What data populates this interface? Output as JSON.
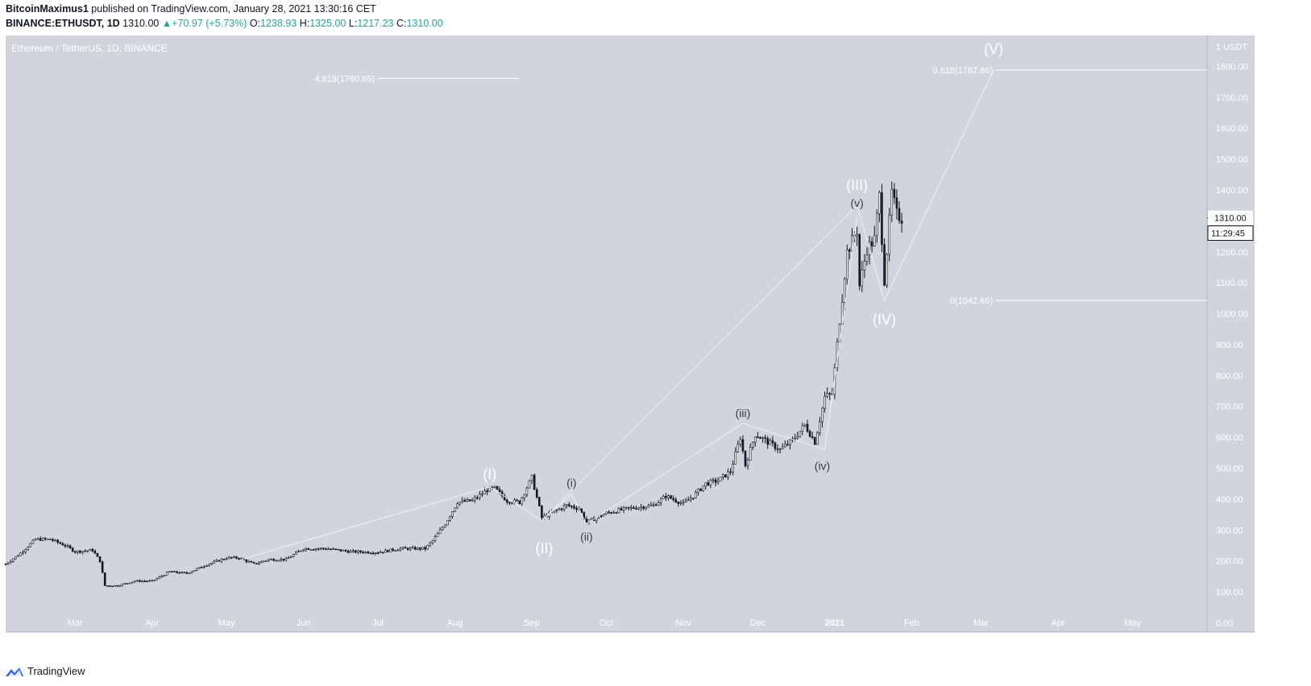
{
  "header": {
    "author": "BitcoinMaximus1",
    "published_text": "published on TradingView.com, January 28, 2021 13:30:16 CET",
    "symbol": "BINANCE:ETHUSDT, 1D",
    "last": "1310.00",
    "arrow": "▲",
    "change": "+70.97 (+5.73%)",
    "o_label": "O:",
    "o_value": "1238.93",
    "h_label": "H:",
    "h_value": "1325.00",
    "l_label": "L:",
    "l_value": "1217.23",
    "c_label": "C:",
    "c_value": "1310.00"
  },
  "footer": {
    "brand": "TradingView"
  },
  "colors": {
    "background": "#d1d4dc",
    "candle": "#131722",
    "wave_line": "#f0f3fa",
    "label": "#ffffff",
    "accent": "#26a69a"
  },
  "chart_data": {
    "type": "candlestick",
    "title": "Ethereum / TetherUS, 1D, BINANCE",
    "ylabel": "USDT",
    "y_unit_label": "1 USDT",
    "ylim": [
      -30,
      1900
    ],
    "yticks": [
      0,
      100,
      200,
      300,
      400,
      500,
      600,
      700,
      800,
      900,
      1000,
      1100,
      1200,
      1300,
      1400,
      1500,
      1600,
      1700,
      1800
    ],
    "ytick_labels": [
      "0.00",
      "100.00",
      "200.00",
      "300.00",
      "400.00",
      "500.00",
      "600.00",
      "700.00",
      "800.00",
      "900.00",
      "1000.00",
      "1100.00",
      "1200.00",
      "1300.00",
      "1400.00",
      "1500.00",
      "1600.00",
      "1700.00",
      "1800.00"
    ],
    "xlim": [
      "2020-02-02",
      "2021-05-31"
    ],
    "xticks": [
      {
        "date": "2020-03-01",
        "label": "Mar"
      },
      {
        "date": "2020-04-01",
        "label": "Apr"
      },
      {
        "date": "2020-05-01",
        "label": "May"
      },
      {
        "date": "2020-06-01",
        "label": "Jun"
      },
      {
        "date": "2020-07-01",
        "label": "Jul"
      },
      {
        "date": "2020-08-01",
        "label": "Aug"
      },
      {
        "date": "2020-09-01",
        "label": "Sep"
      },
      {
        "date": "2020-10-01",
        "label": "Oct"
      },
      {
        "date": "2020-11-01",
        "label": "Nov"
      },
      {
        "date": "2020-12-01",
        "label": "Dec"
      },
      {
        "date": "2021-01-01",
        "label": "2021"
      },
      {
        "date": "2021-02-01",
        "label": "Feb"
      },
      {
        "date": "2021-03-01",
        "label": "Mar"
      },
      {
        "date": "2021-04-01",
        "label": "Apr"
      },
      {
        "date": "2021-05-01",
        "label": "May"
      }
    ],
    "price_points": [
      [
        "2020-02-02",
        190
      ],
      [
        "2020-02-08",
        225
      ],
      [
        "2020-02-14",
        270
      ],
      [
        "2020-02-20",
        270
      ],
      [
        "2020-02-26",
        250
      ],
      [
        "2020-03-01",
        230
      ],
      [
        "2020-03-08",
        235
      ],
      [
        "2020-03-11",
        200
      ],
      [
        "2020-03-13",
        120
      ],
      [
        "2020-03-18",
        120
      ],
      [
        "2020-03-25",
        135
      ],
      [
        "2020-04-01",
        135
      ],
      [
        "2020-04-08",
        165
      ],
      [
        "2020-04-15",
        160
      ],
      [
        "2020-04-22",
        185
      ],
      [
        "2020-05-01",
        210
      ],
      [
        "2020-05-06",
        210
      ],
      [
        "2020-05-12",
        190
      ],
      [
        "2020-05-18",
        205
      ],
      [
        "2020-05-25",
        205
      ],
      [
        "2020-06-01",
        240
      ],
      [
        "2020-06-10",
        240
      ],
      [
        "2020-06-20",
        230
      ],
      [
        "2020-07-01",
        228
      ],
      [
        "2020-07-10",
        240
      ],
      [
        "2020-07-20",
        240
      ],
      [
        "2020-07-23",
        265
      ],
      [
        "2020-07-28",
        320
      ],
      [
        "2020-08-02",
        390
      ],
      [
        "2020-08-08",
        395
      ],
      [
        "2020-08-14",
        430
      ],
      [
        "2020-08-17",
        435
      ],
      [
        "2020-08-22",
        395
      ],
      [
        "2020-08-27",
        390
      ],
      [
        "2020-09-01",
        470
      ],
      [
        "2020-09-05",
        340
      ],
      [
        "2020-09-10",
        360
      ],
      [
        "2020-09-15",
        380
      ],
      [
        "2020-09-20",
        370
      ],
      [
        "2020-09-23",
        325
      ],
      [
        "2020-10-01",
        355
      ],
      [
        "2020-10-10",
        370
      ],
      [
        "2020-10-20",
        380
      ],
      [
        "2020-10-25",
        410
      ],
      [
        "2020-11-01",
        385
      ],
      [
        "2020-11-05",
        410
      ],
      [
        "2020-11-10",
        450
      ],
      [
        "2020-11-15",
        460
      ],
      [
        "2020-11-20",
        490
      ],
      [
        "2020-11-24",
        600
      ],
      [
        "2020-11-26",
        510
      ],
      [
        "2020-11-30",
        610
      ],
      [
        "2020-12-05",
        585
      ],
      [
        "2020-12-10",
        560
      ],
      [
        "2020-12-15",
        590
      ],
      [
        "2020-12-20",
        640
      ],
      [
        "2020-12-24",
        585
      ],
      [
        "2020-12-28",
        730
      ],
      [
        "2020-12-31",
        740
      ],
      [
        "2021-01-03",
        980
      ],
      [
        "2021-01-06",
        1200
      ],
      [
        "2021-01-10",
        1270
      ],
      [
        "2021-01-11",
        1090
      ],
      [
        "2021-01-14",
        1210
      ],
      [
        "2021-01-17",
        1240
      ],
      [
        "2021-01-19",
        1380
      ],
      [
        "2021-01-21",
        1110
      ],
      [
        "2021-01-24",
        1390
      ],
      [
        "2021-01-26",
        1320
      ],
      [
        "2021-01-28",
        1310
      ]
    ],
    "waves": [
      {
        "points": [
          [
            "2020-05-07",
            205
          ],
          [
            "2020-08-15",
            440
          ],
          [
            "2020-09-05",
            330
          ],
          [
            "2021-01-10",
            1350
          ],
          [
            "2021-01-21",
            1042.66
          ],
          [
            "2021-03-06",
            1787.86
          ]
        ]
      },
      {
        "points": [
          [
            "2020-09-05",
            330
          ],
          [
            "2020-09-17",
            415
          ],
          [
            "2020-09-23",
            320
          ],
          [
            "2020-11-25",
            645
          ],
          [
            "2020-12-28",
            560
          ],
          [
            "2021-01-10",
            1310
          ]
        ]
      }
    ],
    "wave_labels": [
      {
        "text": "(I)",
        "date": "2020-08-15",
        "value": 465,
        "size": "big"
      },
      {
        "text": "(II)",
        "date": "2020-09-06",
        "value": 225,
        "size": "big"
      },
      {
        "text": "(III)",
        "date": "2021-01-10",
        "value": 1400,
        "size": "big"
      },
      {
        "text": "(IV)",
        "date": "2021-01-21",
        "value": 965,
        "size": "big"
      },
      {
        "text": "(V)",
        "date": "2021-03-06",
        "value": 1840,
        "size": "big"
      },
      {
        "text": "(i)",
        "date": "2020-09-17",
        "value": 440,
        "size": "small"
      },
      {
        "text": "(ii)",
        "date": "2020-09-23",
        "value": 265,
        "size": "small"
      },
      {
        "text": "(iii)",
        "date": "2020-11-25",
        "value": 665,
        "size": "small"
      },
      {
        "text": "(iv)",
        "date": "2020-12-27",
        "value": 495,
        "size": "small"
      },
      {
        "text": "(v)",
        "date": "2021-01-10",
        "value": 1345,
        "size": "small"
      }
    ],
    "fib_levels": [
      {
        "label": "4.618(1760.85)",
        "value": 1760.85,
        "from": "2020-07-01",
        "to": "2020-08-27"
      },
      {
        "label": "0.618(1787.86)",
        "value": 1787.86,
        "from": "2021-03-07",
        "to": "2021-05-31"
      },
      {
        "label": "0(1042.66)",
        "value": 1042.66,
        "from": "2021-03-07",
        "to": "2021-05-31"
      }
    ],
    "last_price": {
      "value": 1310,
      "label": "1310.00",
      "countdown": "11:29:45"
    }
  }
}
